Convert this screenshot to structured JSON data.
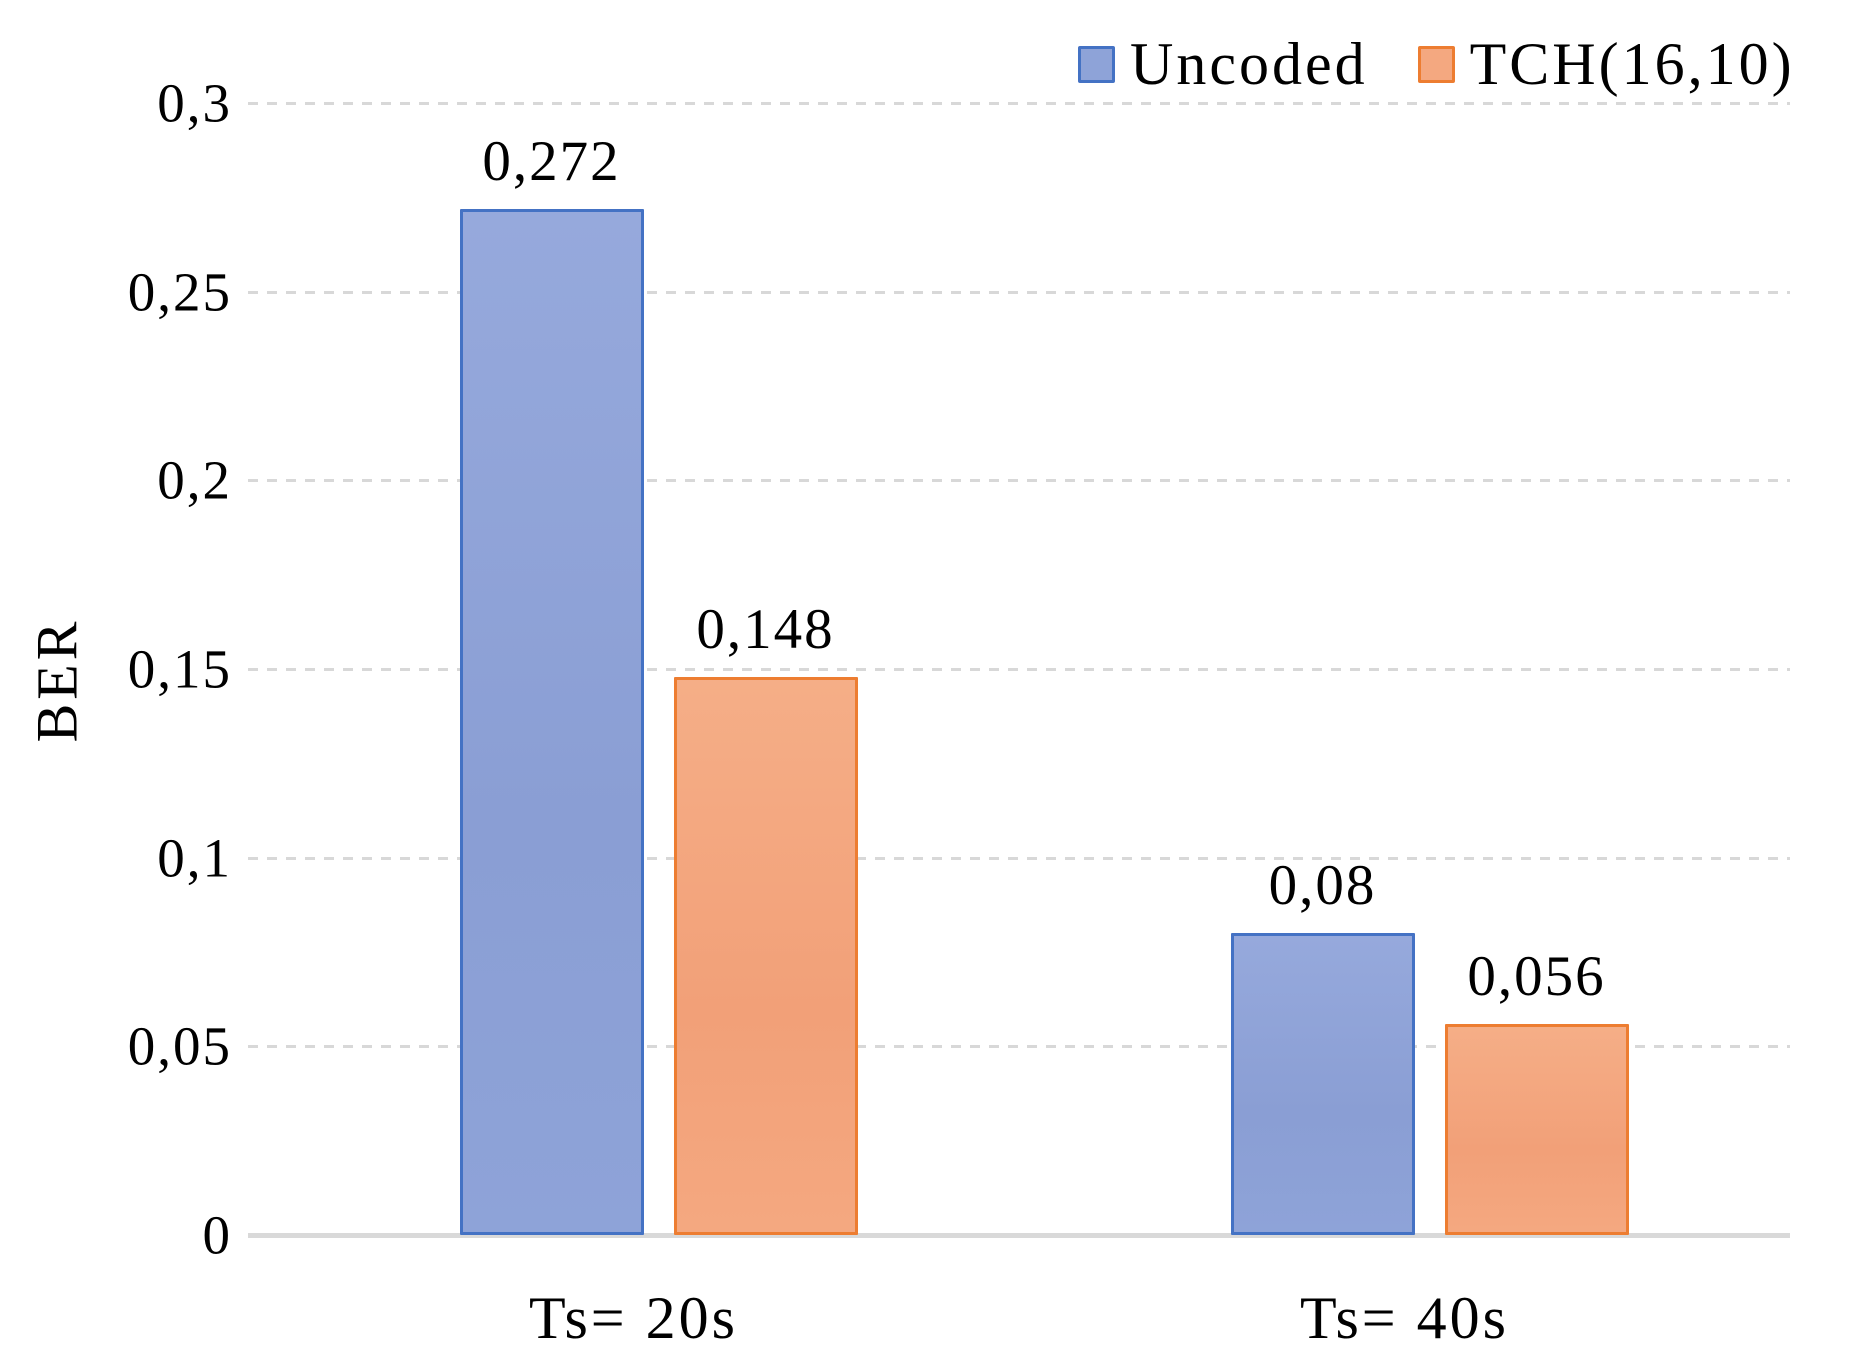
{
  "chart_data": {
    "type": "bar",
    "title": "",
    "ylabel": "BER",
    "xlabel": "",
    "categories": [
      "Ts= 20s",
      "Ts= 40s"
    ],
    "series": [
      {
        "name": "Uncoded",
        "values": [
          0.272,
          0.08
        ],
        "value_labels": [
          "0,272",
          "0,08"
        ],
        "fill": "#8ea3d8",
        "border": "#4472c4"
      },
      {
        "name": "TCH(16,10)",
        "values": [
          0.148,
          0.056
        ],
        "value_labels": [
          "0,148",
          "0,056"
        ],
        "fill": "#f4a880",
        "border": "#ed7d31"
      }
    ],
    "y_ticks": [
      {
        "v": 0,
        "label": "0"
      },
      {
        "v": 0.05,
        "label": "0,05"
      },
      {
        "v": 0.1,
        "label": "0,1"
      },
      {
        "v": 0.15,
        "label": "0,15"
      },
      {
        "v": 0.2,
        "label": "0,2"
      },
      {
        "v": 0.25,
        "label": "0,25"
      },
      {
        "v": 0.3,
        "label": "0,3"
      }
    ],
    "ylim": [
      0,
      0.3
    ],
    "grid": "horizontal-dashed",
    "legend_position": "top-right",
    "colors": {
      "gridline": "#d8d8d8",
      "axis_line": "#d9d9d9",
      "text": "#000000"
    }
  }
}
